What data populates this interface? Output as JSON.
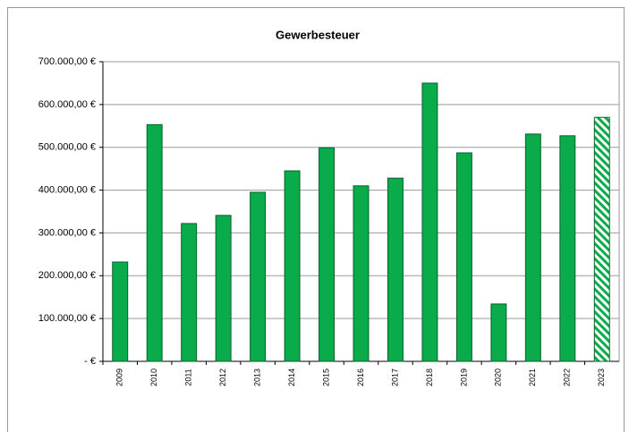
{
  "chart_data": {
    "type": "bar",
    "title": "Gewerbesteuer",
    "categories": [
      "2009",
      "2010",
      "2011",
      "2012",
      "2013",
      "2014",
      "2015",
      "2016",
      "2017",
      "2018",
      "2019",
      "2020",
      "2021",
      "2022",
      "2023"
    ],
    "values": [
      232000,
      553000,
      322000,
      341000,
      395000,
      445000,
      499000,
      410000,
      428000,
      650000,
      487000,
      134000,
      531000,
      527000,
      570000
    ],
    "bar_styles": [
      "solid",
      "solid",
      "solid",
      "solid",
      "solid",
      "solid",
      "solid",
      "solid",
      "solid",
      "solid",
      "solid",
      "solid",
      "solid",
      "solid",
      "hatched"
    ],
    "color": "#0aab4a",
    "ylim": [
      0,
      700000
    ],
    "yticks": [
      {
        "value": 0,
        "label": "-   €"
      },
      {
        "value": 100000,
        "label": "100.000,00 €"
      },
      {
        "value": 200000,
        "label": "200.000,00 €"
      },
      {
        "value": 300000,
        "label": "300.000,00 €"
      },
      {
        "value": 400000,
        "label": "400.000,00 €"
      },
      {
        "value": 500000,
        "label": "500.000,00 €"
      },
      {
        "value": 600000,
        "label": "600.000,00 €"
      },
      {
        "value": 700000,
        "label": "700.000,00 €"
      }
    ],
    "grid": true
  }
}
